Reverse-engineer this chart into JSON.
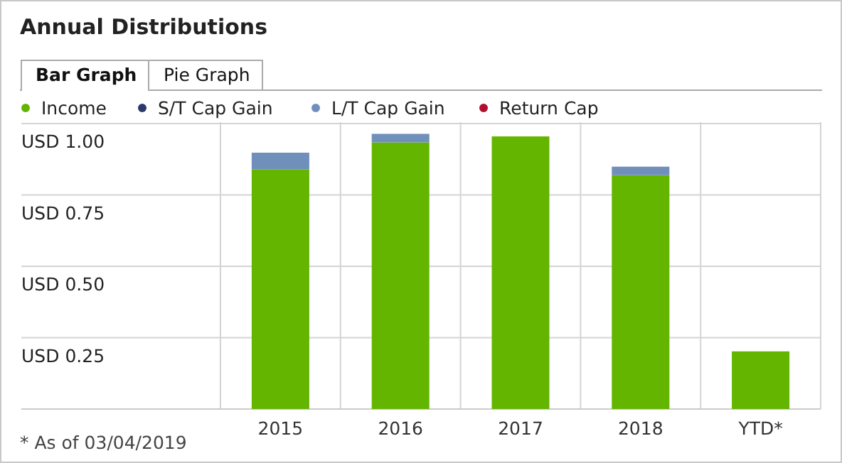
{
  "chart_data": {
    "type": "bar",
    "title": "Annual Distributions",
    "stacked": true,
    "categories": [
      "2015",
      "2016",
      "2017",
      "2018",
      "YTD*"
    ],
    "series": [
      {
        "name": "Income",
        "color": "#63b500",
        "values": [
          0.84,
          0.934,
          0.955,
          0.819,
          0.202
        ]
      },
      {
        "name": "S/T Cap Gain",
        "color": "#2b3a6b",
        "values": [
          0,
          0,
          0,
          0,
          0
        ]
      },
      {
        "name": "L/T Cap Gain",
        "color": "#7090bb",
        "values": [
          0.058,
          0.03,
          0,
          0.03,
          0
        ]
      },
      {
        "name": "Return Cap",
        "color": "#b0102e",
        "values": [
          0,
          0,
          0,
          0,
          0
        ]
      }
    ],
    "ylabel": "USD",
    "ylim": [
      0,
      1
    ],
    "yticks": [
      {
        "value": 0.25,
        "label": "0.25"
      },
      {
        "value": 0.5,
        "label": "0.50"
      },
      {
        "value": 0.75,
        "label": "0.75"
      },
      {
        "value": 1,
        "label": "1.00"
      }
    ],
    "grid": true,
    "legend": "top left",
    "annotations": [
      "Bar Graph",
      "Pie Graph",
      "* As of 03/04/2019"
    ]
  }
}
